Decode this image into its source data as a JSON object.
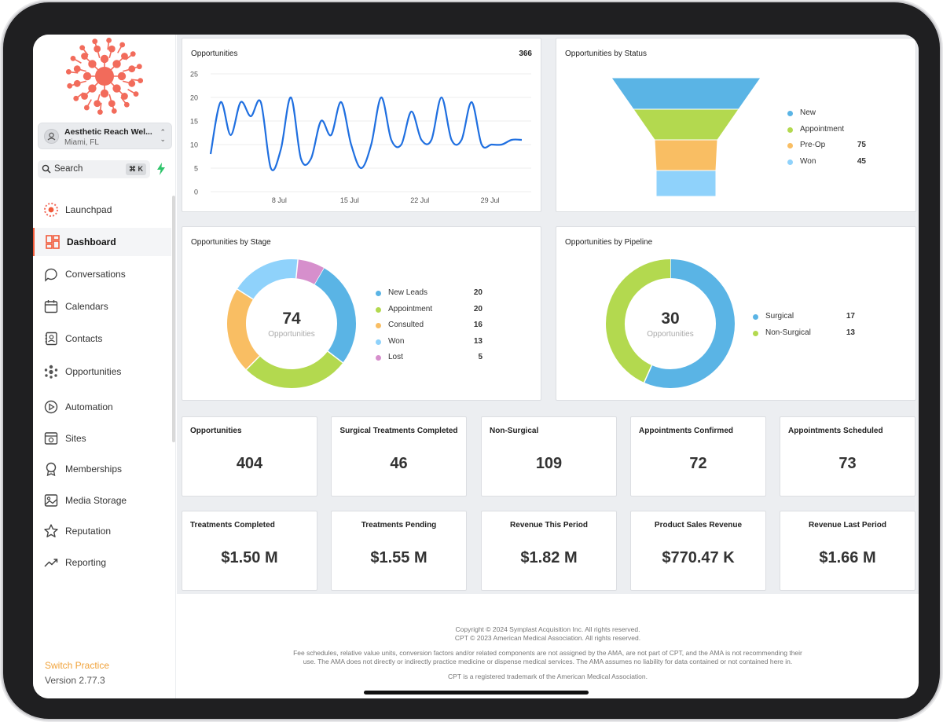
{
  "practice": {
    "name": "Aesthetic Reach Wel...",
    "location": "Miami, FL"
  },
  "search": {
    "label": "Search",
    "shortcut": "⌘ K"
  },
  "nav": [
    {
      "label": "Launchpad",
      "icon": "launchpad-icon"
    },
    {
      "label": "Dashboard",
      "icon": "dashboard-icon",
      "active": true
    },
    {
      "label": "Conversations",
      "icon": "chat-icon"
    },
    {
      "label": "Calendars",
      "icon": "calendar-icon"
    },
    {
      "label": "Contacts",
      "icon": "contacts-icon"
    },
    {
      "label": "Opportunities",
      "icon": "opportunities-icon"
    },
    {
      "label": "Automation",
      "icon": "automation-icon"
    },
    {
      "label": "Sites",
      "icon": "sites-icon"
    },
    {
      "label": "Memberships",
      "icon": "membership-icon"
    },
    {
      "label": "Media Storage",
      "icon": "media-icon"
    },
    {
      "label": "Reputation",
      "icon": "star-icon"
    },
    {
      "label": "Reporting",
      "icon": "reporting-icon"
    }
  ],
  "sidebar_footer": {
    "switch": "Switch Practice",
    "version": "Version 2.77.3"
  },
  "colors": {
    "accent": "#f15a3a",
    "blue": "#1f6fe0",
    "teal": "#5ab4e5",
    "green": "#b3d94f",
    "orange": "#f9be63",
    "light_blue": "#8fd2fb",
    "pink": "#d68fcc"
  },
  "cards": {
    "opportunities": {
      "title": "Opportunities",
      "total": "366"
    },
    "status": {
      "title": "Opportunities by Status"
    },
    "stage": {
      "title": "Opportunities by Stage",
      "center_value": "74",
      "center_label": "Opportunities"
    },
    "pipeline": {
      "title": "Opportunities by Pipeline",
      "center_value": "30",
      "center_label": "Opportunities"
    }
  },
  "chart_data": [
    {
      "type": "line",
      "title": "Opportunities",
      "x_ticks": [
        "8 Jul",
        "15 Jul",
        "22 Jul",
        "29 Jul"
      ],
      "ylim": [
        0,
        25
      ],
      "y_ticks": [
        "0",
        "5",
        "10",
        "15",
        "20",
        "25"
      ],
      "grid": true,
      "x": [
        1,
        2,
        3,
        4,
        5,
        6,
        7,
        8,
        9,
        10,
        11,
        12,
        13,
        14,
        15,
        16,
        17,
        18,
        19,
        20,
        21,
        22,
        23,
        24,
        25,
        26,
        27,
        28,
        29,
        30,
        31,
        32
      ],
      "values": [
        8,
        19,
        12,
        19,
        16,
        19,
        5,
        9,
        20,
        7,
        7,
        15,
        12,
        19,
        10,
        5,
        10,
        20,
        11,
        10,
        17,
        11,
        11,
        20,
        11,
        11,
        19,
        10,
        10,
        10,
        11,
        11
      ]
    },
    {
      "type": "funnel",
      "title": "Opportunities by Status",
      "categories": [
        "New",
        "Appointment",
        "Pre-Op",
        "Won"
      ],
      "values": [
        null,
        null,
        75,
        45
      ],
      "value_labels": [
        "",
        "",
        "75",
        "45"
      ],
      "colors": [
        "#5ab4e5",
        "#b3d94f",
        "#f9be63",
        "#8fd2fb"
      ]
    },
    {
      "type": "pie",
      "title": "Opportunities by Stage",
      "categories": [
        "New Leads",
        "Appointment",
        "Consulted",
        "Won",
        "Lost"
      ],
      "values": [
        20,
        20,
        16,
        13,
        5
      ],
      "value_labels": [
        "20",
        "20",
        "16",
        "13",
        "5"
      ],
      "colors": [
        "#5ab4e5",
        "#b3d94f",
        "#f9be63",
        "#8fd2fb",
        "#d68fcc"
      ]
    },
    {
      "type": "pie",
      "title": "Opportunities by Pipeline",
      "categories": [
        "Surgical",
        "Non-Surgical"
      ],
      "values": [
        17,
        13
      ],
      "value_labels": [
        "17",
        "13"
      ],
      "colors": [
        "#5ab4e5",
        "#b3d94f"
      ]
    }
  ],
  "stats": [
    {
      "title": "Opportunities",
      "value": "404"
    },
    {
      "title": "Surgical Treatments Completed",
      "value": "46"
    },
    {
      "title": "Non-Surgical",
      "value": "109"
    },
    {
      "title": "Appointments Confirmed",
      "value": "72"
    },
    {
      "title": "Appointments Scheduled",
      "value": "73"
    },
    {
      "title": "Treatments Completed",
      "value": "$1.50 M"
    },
    {
      "title": "Treatments Pending",
      "value": "$1.55 M"
    },
    {
      "title": "Revenue This Period",
      "value": "$1.82 M"
    },
    {
      "title": "Product Sales Revenue",
      "value": "$770.47 K"
    },
    {
      "title": "Revenue Last Period",
      "value": "$1.66 M"
    }
  ],
  "footer": {
    "line1": "Copyright © 2024 Symplast Acquisition Inc. All rights reserved.",
    "line2": "CPT © 2023 American Medical Association. All rights reserved.",
    "line3": "Fee schedules, relative value units, conversion factors and/or related components are not assigned by the AMA, are not part of CPT, and the AMA is not recommending their",
    "line4": "use. The AMA does not directly or indirectly practice medicine or dispense medical services. The AMA assumes no liability for data contained or not contained here in.",
    "line5": "CPT is a registered trademark of the American Medical Association."
  }
}
